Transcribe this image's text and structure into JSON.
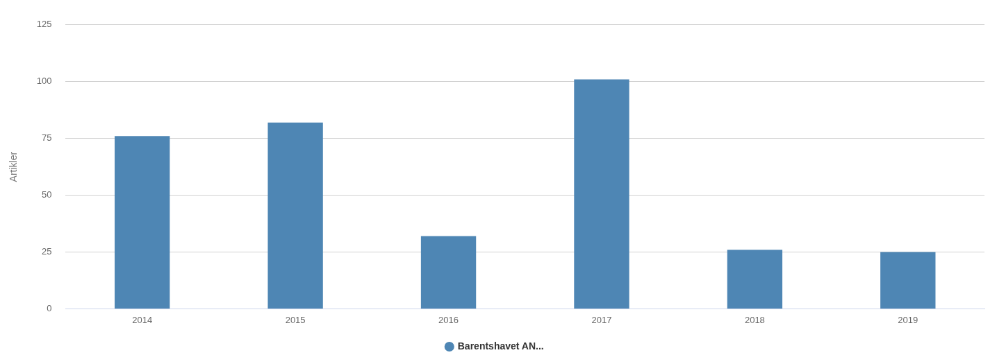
{
  "chart_data": {
    "type": "bar",
    "ylabel": "Artikler",
    "categories": [
      "2014",
      "2015",
      "2016",
      "2017",
      "2018",
      "2019"
    ],
    "series": [
      {
        "name": "Barentshavet AN...",
        "color": "#4e86b4",
        "values": [
          76,
          82,
          32,
          101,
          26,
          25
        ]
      }
    ],
    "ylim": [
      0,
      125
    ],
    "yticks": [
      0,
      25,
      50,
      75,
      100,
      125
    ],
    "grid": "y",
    "legend": "bottom"
  }
}
